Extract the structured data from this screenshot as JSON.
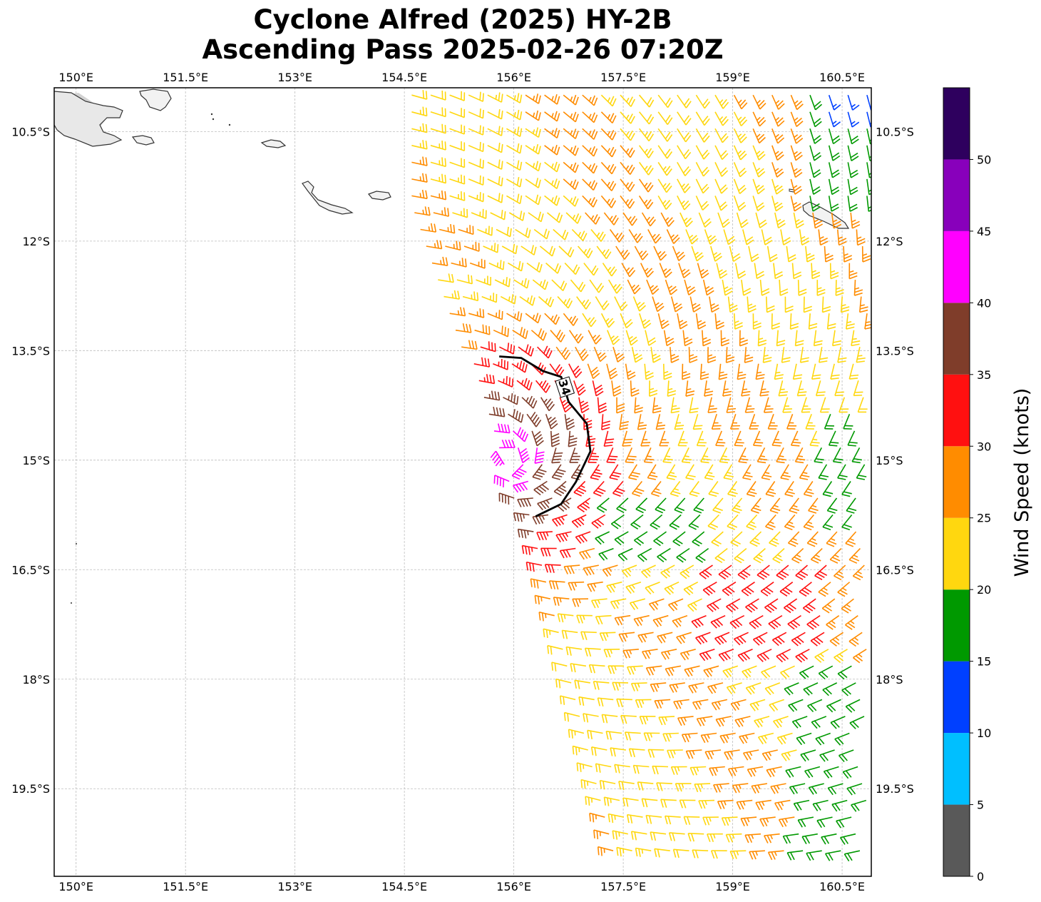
{
  "title": {
    "line1": "Cyclone Alfred (2025) HY-2B",
    "line2": "Ascending Pass 2025-02-26 07:20Z"
  },
  "map": {
    "lon_range": [
      149.7,
      160.9
    ],
    "lat_range": [
      -9.9,
      -20.7
    ],
    "lon_ticks": [
      {
        "value": 150.0,
        "label": "150°E"
      },
      {
        "value": 151.5,
        "label": "151.5°E"
      },
      {
        "value": 153.0,
        "label": "153°E"
      },
      {
        "value": 154.5,
        "label": "154.5°E"
      },
      {
        "value": 156.0,
        "label": "156°E"
      },
      {
        "value": 157.5,
        "label": "157.5°E"
      },
      {
        "value": 159.0,
        "label": "159°E"
      },
      {
        "value": 160.5,
        "label": "160.5°E"
      }
    ],
    "lat_ticks": [
      {
        "value": -10.5,
        "label": "10.5°S"
      },
      {
        "value": -12.0,
        "label": "12°S"
      },
      {
        "value": -13.5,
        "label": "13.5°S"
      },
      {
        "value": -15.0,
        "label": "15°S"
      },
      {
        "value": -16.5,
        "label": "16.5°S"
      },
      {
        "value": -18.0,
        "label": "18°S"
      },
      {
        "value": -19.5,
        "label": "19.5°S"
      }
    ],
    "grid": true,
    "contour_34kt": {
      "label": "34",
      "points": [
        [
          155.8,
          -13.58
        ],
        [
          156.1,
          -13.6
        ],
        [
          156.4,
          -13.78
        ],
        [
          156.65,
          -13.86
        ],
        [
          156.75,
          -14.2
        ],
        [
          157.0,
          -14.5
        ],
        [
          157.05,
          -14.88
        ],
        [
          156.85,
          -15.3
        ],
        [
          156.65,
          -15.6
        ],
        [
          156.3,
          -15.77
        ]
      ]
    }
  },
  "colorbar": {
    "label": "Wind Speed (knots)",
    "bins": [
      {
        "from": 0,
        "to": 5,
        "color": "#595959"
      },
      {
        "from": 5,
        "to": 10,
        "color": "#00bfff"
      },
      {
        "from": 10,
        "to": 15,
        "color": "#0040ff"
      },
      {
        "from": 15,
        "to": 20,
        "color": "#009900"
      },
      {
        "from": 20,
        "to": 25,
        "color": "#ffd70f"
      },
      {
        "from": 25,
        "to": 30,
        "color": "#ff8c00"
      },
      {
        "from": 30,
        "to": 35,
        "color": "#ff1010"
      },
      {
        "from": 35,
        "to": 40,
        "color": "#7f3d2a"
      },
      {
        "from": 40,
        "to": 45,
        "color": "#ff00ff"
      },
      {
        "from": 45,
        "to": 50,
        "color": "#8800bb"
      },
      {
        "from": 50,
        "to": 55,
        "color": "#2e005e"
      }
    ],
    "tick_labels": [
      "0",
      "5",
      "10",
      "15",
      "20",
      "25",
      "30",
      "35",
      "40",
      "45",
      "50"
    ]
  }
}
